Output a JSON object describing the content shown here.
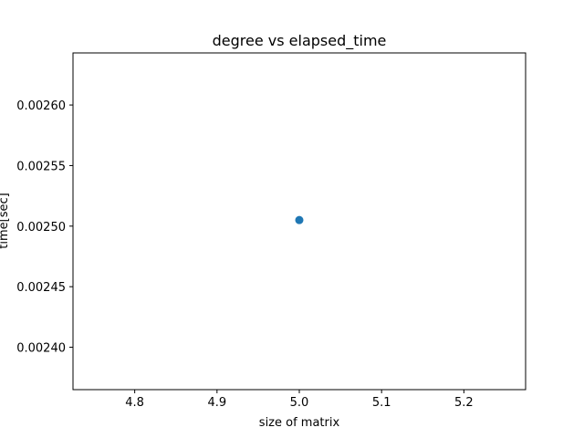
{
  "chart_data": {
    "type": "scatter",
    "title": "degree vs elapsed_time",
    "xlabel": "size of matrix",
    "ylabel": "time[sec]",
    "xlim": [
      4.725,
      5.275
    ],
    "ylim": [
      0.002365,
      0.002643
    ],
    "xticks": [
      4.8,
      4.9,
      5.0,
      5.1,
      5.2
    ],
    "xtick_labels": [
      "4.8",
      "4.9",
      "5.0",
      "5.1",
      "5.2"
    ],
    "yticks": [
      0.0024,
      0.00245,
      0.0025,
      0.00255,
      0.0026
    ],
    "ytick_labels": [
      "0.00240",
      "0.00245",
      "0.00250",
      "0.00255",
      "0.00260"
    ],
    "grid": false,
    "marker_color": "#1f77b4",
    "points": [
      {
        "x": 5.0,
        "y": 0.002505
      }
    ]
  }
}
